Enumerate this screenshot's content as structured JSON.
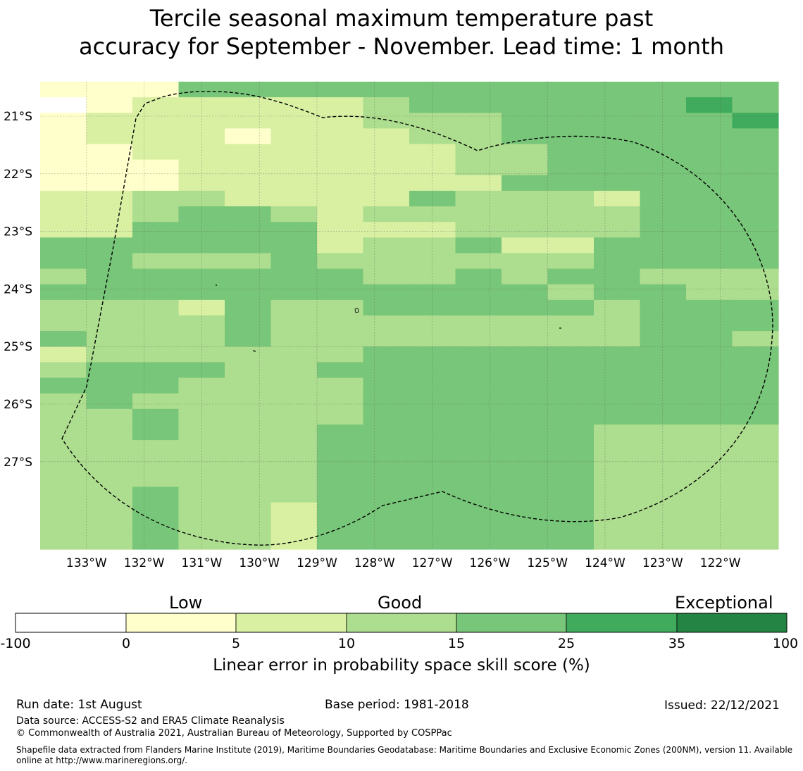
{
  "title": {
    "line1": "Tercile seasonal maximum temperature past",
    "line2": "accuracy for September - November. Lead time: 1 month"
  },
  "map": {
    "lon_ticks": [
      "133°W",
      "132°W",
      "131°W",
      "130°W",
      "129°W",
      "128°W",
      "127°W",
      "126°W",
      "125°W",
      "124°W",
      "123°W",
      "122°W"
    ],
    "lat_ticks": [
      "21°S",
      "22°S",
      "23°S",
      "24°S",
      "25°S",
      "26°S",
      "27°S"
    ],
    "lon_range": [
      -133.8,
      -121.0
    ],
    "lat_range": [
      -28.5,
      -20.4
    ],
    "colors": [
      "#ffffff",
      "#ffffcc",
      "#d9f0a3",
      "#addd8e",
      "#78c679",
      "#41ab5d",
      "#238443"
    ],
    "grid_note": "class index per cell: 0=-100..0, 1=0..5, 2=5..10, 3=10..15, 4=15..25, 5=25..35, 6=35..100",
    "grid": [
      "1114444444444444",
      "0122222344444454",
      "1222222333444445",
      "1222122233444444",
      "1122222223344444",
      "1112222223344444",
      "1112222222444444",
      "2233222243332444",
      "2234432333333444",
      "2244442223333444",
      "4444442334224444",
      "4433343333334444",
      "3444444334344333",
      "4444444444434433",
      "3332433444443444",
      "3333433333333444",
      "4333433333333443",
      "2333333444444444",
      "3444334444444444",
      "4443333444444444",
      "3433333444444444",
      "3343333444444444",
      "3343334444443333",
      "3333334444443333",
      "3333334444443333",
      "3333334444443333",
      "3343334444443333",
      "3343324444443333",
      "3343324444443333",
      "3343324444443333"
    ]
  },
  "colorbar": {
    "headings": [
      "Low",
      "Good",
      "Exceptional"
    ],
    "ticks": [
      "-100",
      "0",
      "5",
      "10",
      "15",
      "25",
      "35",
      "100"
    ],
    "label": "Linear error in probability space skill score (%)"
  },
  "footer": {
    "run_date": "Run date: 1st August",
    "base_period": "Base period: 1981-2018",
    "issued": "Issued: 22/12/2021",
    "data_source": "Data source: ACCESS-S2 and ERA5 Climate Reanalysis",
    "copyright": "© Commonwealth of Australia 2021, Australian Bureau of Meteorology, Supported by COSPPac",
    "shapefile_line1": "Shapefile data extracted from Flanders Marine Institute (2019), Maritime Boundaries Geodatabase: Maritime Boundaries and Exclusive Economic Zones (200NM), version 11. Available",
    "shapefile_line2": "online at http://www.marineregions.org/."
  }
}
